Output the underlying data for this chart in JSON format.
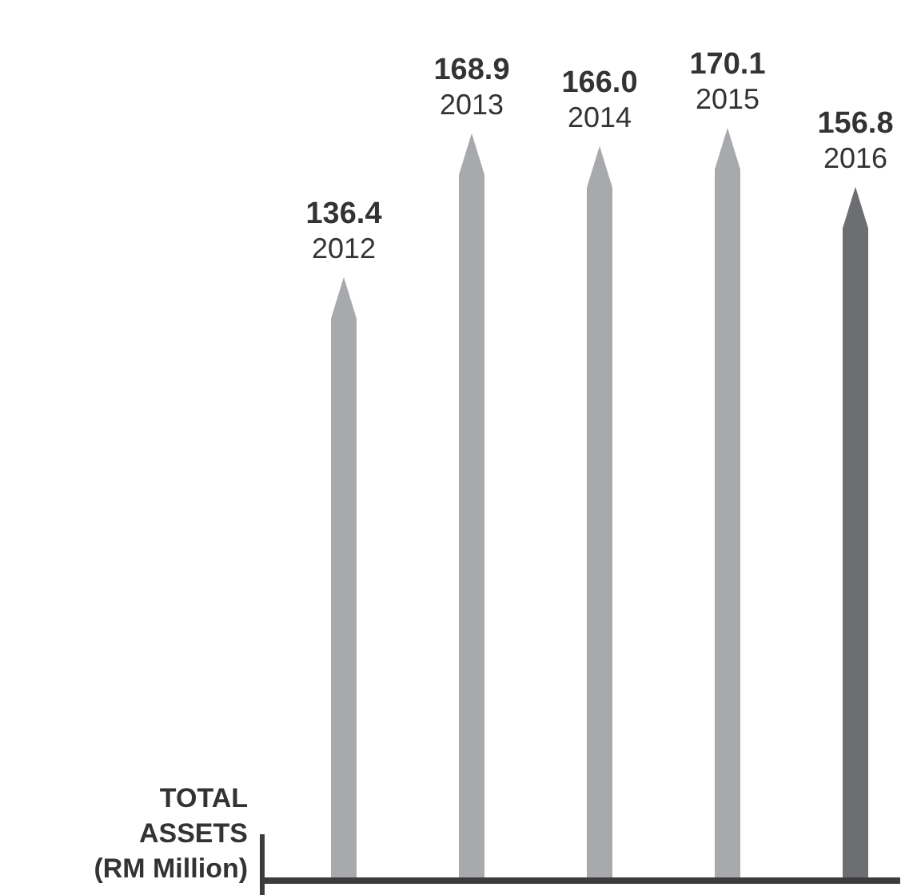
{
  "chart_data": {
    "type": "bar",
    "ylabel": "TOTAL ASSETS (RM Million)",
    "categories": [
      "2012",
      "2013",
      "2014",
      "2015",
      "2016"
    ],
    "values": [
      136.4,
      168.9,
      166.0,
      170.1,
      156.8
    ],
    "colors": [
      "#a7a9ac",
      "#a7a9ac",
      "#a7a9ac",
      "#a7a9ac",
      "#6d6e71"
    ],
    "value_labels": [
      "136.4",
      "168.9",
      "166.0",
      "170.1",
      "156.8"
    ],
    "tick_labels": false
  }
}
